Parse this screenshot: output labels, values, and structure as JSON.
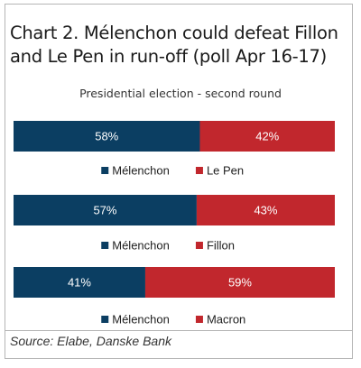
{
  "title": "Chart 2. Mélenchon could defeat Fillon and Le Pen in run-off (poll Apr 16-17)",
  "subtitle": "Presidential election - second round",
  "source": "Source: Elabe, Danske Bank",
  "colors": {
    "navy": "#0b3e62",
    "red": "#c1272d"
  },
  "chart_data": [
    {
      "type": "bar",
      "stacked": true,
      "orientation": "horizontal",
      "series": [
        {
          "name": "Mélenchon",
          "value": 58,
          "label": "58%"
        },
        {
          "name": "Le Pen",
          "value": 42,
          "label": "42%"
        }
      ]
    },
    {
      "type": "bar",
      "stacked": true,
      "orientation": "horizontal",
      "series": [
        {
          "name": "Mélenchon",
          "value": 57,
          "label": "57%"
        },
        {
          "name": "Fillon",
          "value": 43,
          "label": "43%"
        }
      ]
    },
    {
      "type": "bar",
      "stacked": true,
      "orientation": "horizontal",
      "series": [
        {
          "name": "Mélenchon",
          "value": 41,
          "label": "41%"
        },
        {
          "name": "Macron",
          "value": 59,
          "label": "59%"
        }
      ]
    }
  ]
}
